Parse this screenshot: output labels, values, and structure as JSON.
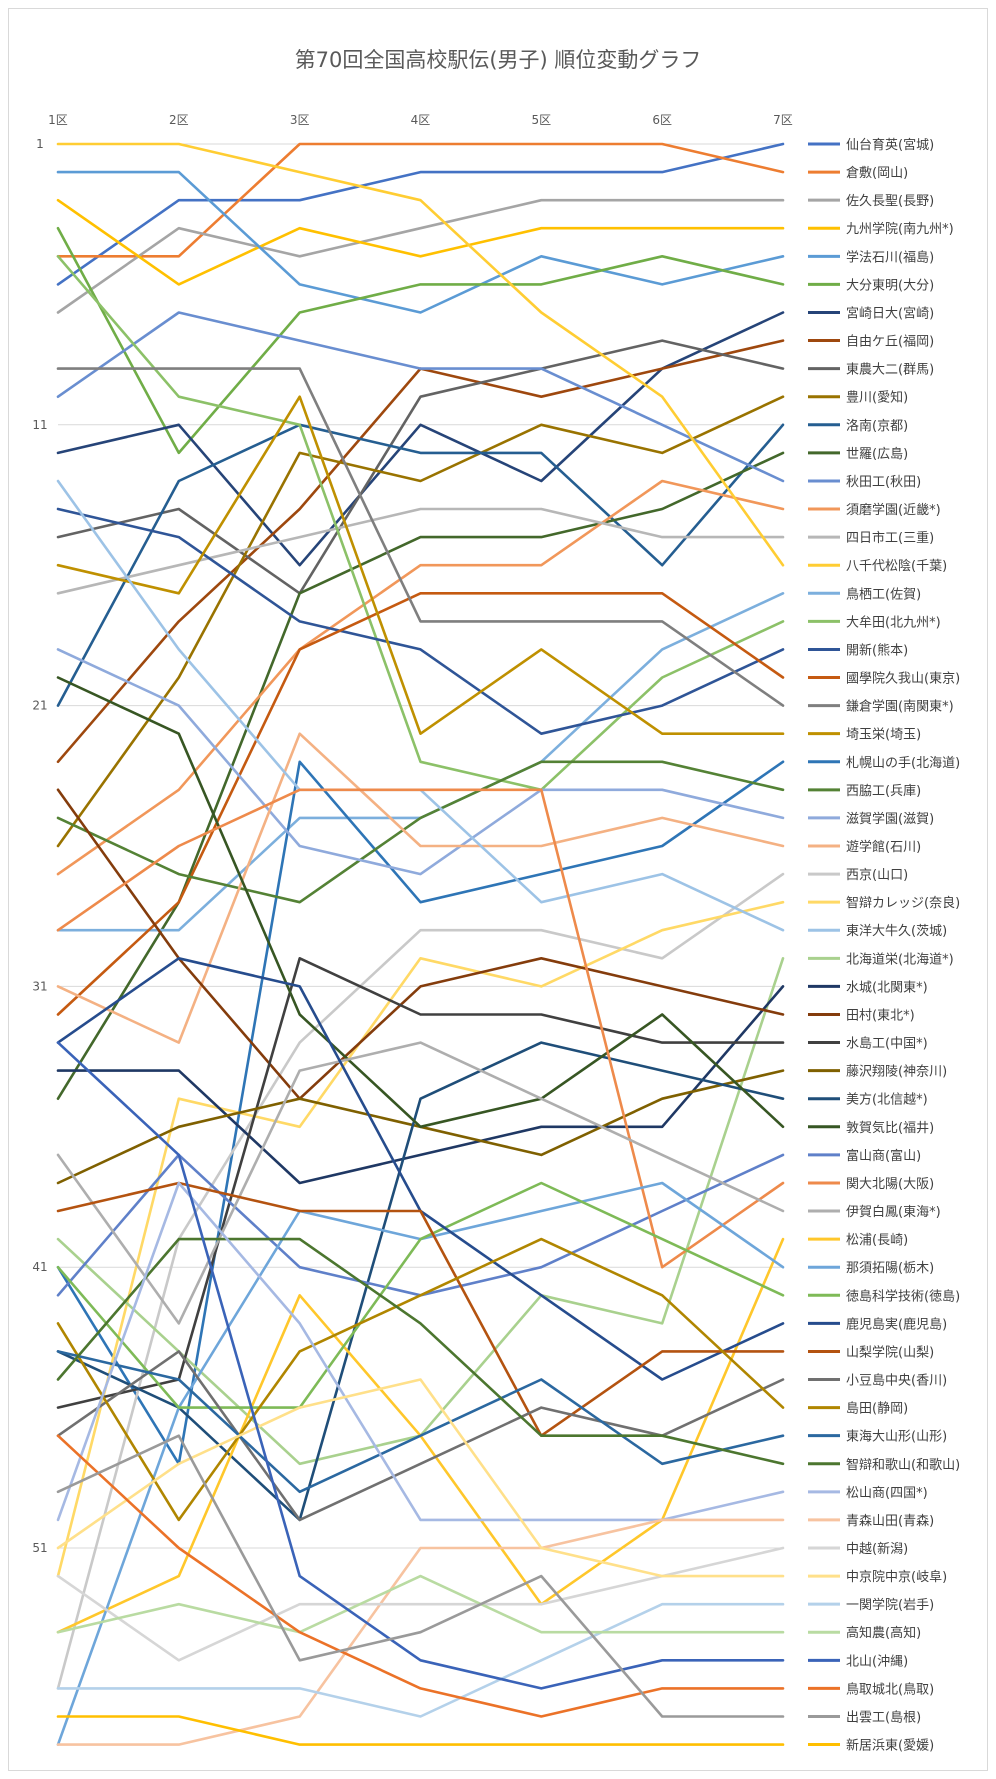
{
  "chart_data": {
    "type": "line",
    "title": "第70回全国高校駅伝(男子) 順位変動グラフ",
    "x": [
      "1区",
      "2区",
      "3区",
      "4区",
      "5区",
      "6区",
      "7区"
    ],
    "y_ticks": [
      "1",
      "11",
      "21",
      "31",
      "41",
      "51"
    ],
    "ylim": [
      1,
      58
    ],
    "y_inverted": true,
    "grid": "horizontal",
    "legend_position": "right",
    "series": [
      {
        "name": "仙台育英(宮城)",
        "color": "#4472c4",
        "values": [
          6,
          3,
          3,
          2,
          2,
          2,
          1
        ]
      },
      {
        "name": "倉敷(岡山)",
        "color": "#ed7d31",
        "values": [
          5,
          5,
          1,
          1,
          1,
          1,
          2
        ]
      },
      {
        "name": "佐久長聖(長野)",
        "color": "#a5a5a5",
        "values": [
          7,
          4,
          5,
          4,
          3,
          3,
          3
        ]
      },
      {
        "name": "九州学院(南九州*)",
        "color": "#ffc000",
        "values": [
          3,
          6,
          4,
          5,
          4,
          4,
          4
        ]
      },
      {
        "name": "学法石川(福島)",
        "color": "#5b9bd5",
        "values": [
          2,
          2,
          6,
          7,
          5,
          6,
          5
        ]
      },
      {
        "name": "大分東明(大分)",
        "color": "#70ad47",
        "values": [
          4,
          12,
          7,
          6,
          6,
          5,
          6
        ]
      },
      {
        "name": "宮崎日大(宮崎)",
        "color": "#264478",
        "values": [
          12,
          11,
          16,
          11,
          13,
          9,
          7
        ]
      },
      {
        "name": "自由ケ丘(福岡)",
        "color": "#9e480e",
        "values": [
          23,
          18,
          14,
          9,
          10,
          9,
          8
        ]
      },
      {
        "name": "東農大二(群馬)",
        "color": "#636363",
        "values": [
          15,
          14,
          17,
          10,
          9,
          8,
          9
        ]
      },
      {
        "name": "豊川(愛知)",
        "color": "#997300",
        "values": [
          26,
          20,
          12,
          13,
          11,
          12,
          10
        ]
      },
      {
        "name": "洛南(京都)",
        "color": "#255e91",
        "values": [
          21,
          13,
          11,
          12,
          12,
          16,
          11
        ]
      },
      {
        "name": "世羅(広島)",
        "color": "#43682b",
        "values": [
          35,
          28,
          17,
          15,
          15,
          14,
          12
        ]
      },
      {
        "name": "秋田工(秋田)",
        "color": "#698ed0",
        "values": [
          10,
          7,
          8,
          9,
          9,
          11,
          13
        ]
      },
      {
        "name": "須磨学園(近畿*)",
        "color": "#f1975a",
        "values": [
          27,
          24,
          19,
          16,
          16,
          13,
          14
        ]
      },
      {
        "name": "四日市工(三重)",
        "color": "#b7b7b7",
        "values": [
          17,
          16,
          15,
          14,
          14,
          15,
          15
        ]
      },
      {
        "name": "八千代松陰(千葉)",
        "color": "#ffcd33",
        "values": [
          1,
          1,
          2,
          3,
          7,
          10,
          16
        ]
      },
      {
        "name": "鳥栖工(佐賀)",
        "color": "#7cafdd",
        "values": [
          29,
          29,
          25,
          25,
          23,
          19,
          17
        ]
      },
      {
        "name": "大牟田(北九州*)",
        "color": "#8cc168",
        "values": [
          5,
          10,
          11,
          23,
          24,
          20,
          18
        ]
      },
      {
        "name": "開新(熊本)",
        "color": "#2f5597",
        "values": [
          14,
          15,
          18,
          19,
          22,
          21,
          19
        ]
      },
      {
        "name": "國學院久我山(東京)",
        "color": "#c55a11",
        "values": [
          32,
          28,
          19,
          17,
          17,
          17,
          20
        ]
      },
      {
        "name": "鎌倉学園(南関東*)",
        "color": "#7f7f7f",
        "values": [
          9,
          9,
          9,
          18,
          18,
          18,
          21
        ]
      },
      {
        "name": "埼玉栄(埼玉)",
        "color": "#bf9000",
        "values": [
          16,
          17,
          10,
          22,
          19,
          22,
          22
        ]
      },
      {
        "name": "札幌山の手(北海道)",
        "color": "#2e75b6",
        "values": [
          41,
          48,
          23,
          28,
          27,
          26,
          23
        ]
      },
      {
        "name": "西脇工(兵庫)",
        "color": "#548235",
        "values": [
          25,
          27,
          28,
          25,
          23,
          23,
          24
        ]
      },
      {
        "name": "滋賀学園(滋賀)",
        "color": "#8faadc",
        "values": [
          19,
          21,
          26,
          27,
          24,
          24,
          25
        ]
      },
      {
        "name": "遊学館(石川)",
        "color": "#f4b183",
        "values": [
          31,
          33,
          22,
          26,
          26,
          25,
          26
        ]
      },
      {
        "name": "西京(山口)",
        "color": "#c9c9c9",
        "values": [
          56,
          40,
          33,
          29,
          29,
          30,
          27
        ]
      },
      {
        "name": "智辯カレッジ(奈良)",
        "color": "#ffd966",
        "values": [
          52,
          35,
          36,
          30,
          31,
          29,
          28
        ]
      },
      {
        "name": "東洋大牛久(茨城)",
        "color": "#9dc3e6",
        "values": [
          13,
          19,
          24,
          24,
          28,
          27,
          29
        ]
      },
      {
        "name": "北海道栄(北海道*)",
        "color": "#a9d18e",
        "values": [
          40,
          44,
          48,
          47,
          42,
          43,
          30
        ]
      },
      {
        "name": "水城(北関東*)",
        "color": "#1f3864",
        "values": [
          34,
          34,
          38,
          37,
          36,
          36,
          31
        ]
      },
      {
        "name": "田村(東北*)",
        "color": "#843c0c",
        "values": [
          24,
          30,
          35,
          31,
          30,
          31,
          32
        ]
      },
      {
        "name": "水島工(中国*)",
        "color": "#404040",
        "values": [
          46,
          45,
          30,
          32,
          32,
          33,
          33
        ]
      },
      {
        "name": "藤沢翔陵(神奈川)",
        "color": "#7f6000",
        "values": [
          38,
          36,
          35,
          36,
          37,
          35,
          34
        ]
      },
      {
        "name": "美方(北信越*)",
        "color": "#1f4e79",
        "values": [
          44,
          46,
          50,
          35,
          33,
          34,
          35
        ]
      },
      {
        "name": "敦賀気比(福井)",
        "color": "#375623",
        "values": [
          20,
          22,
          32,
          36,
          35,
          32,
          36
        ]
      },
      {
        "name": "富山商(富山)",
        "color": "#5f80c9",
        "values": [
          42,
          37,
          41,
          42,
          41,
          39,
          37
        ]
      },
      {
        "name": "関大北陽(大阪)",
        "color": "#ee8a4b",
        "values": [
          29,
          26,
          24,
          24,
          24,
          41,
          38
        ]
      },
      {
        "name": "伊賀白鳳(東海*)",
        "color": "#aeaeae",
        "values": [
          37,
          43,
          34,
          33,
          35,
          37,
          39
        ]
      },
      {
        "name": "松浦(長崎)",
        "color": "#ffc72b",
        "values": [
          54,
          52,
          42,
          47,
          53,
          50,
          40
        ]
      },
      {
        "name": "那須拓陽(栃木)",
        "color": "#6ea6da",
        "values": [
          58,
          46,
          39,
          40,
          39,
          38,
          41
        ]
      },
      {
        "name": "徳島科学技術(徳島)",
        "color": "#7eba57",
        "values": [
          41,
          46,
          46,
          40,
          38,
          40,
          42
        ]
      },
      {
        "name": "鹿児島実(鹿児島)",
        "color": "#264c8d",
        "values": [
          33,
          30,
          31,
          39,
          42,
          45,
          43
        ]
      },
      {
        "name": "山梨学院(山梨)",
        "color": "#b45310",
        "values": [
          39,
          38,
          39,
          39,
          47,
          44,
          44
        ]
      },
      {
        "name": "小豆島中央(香川)",
        "color": "#707070",
        "values": [
          47,
          44,
          50,
          48,
          46,
          47,
          45
        ]
      },
      {
        "name": "島田(静岡)",
        "color": "#b08600",
        "values": [
          43,
          50,
          44,
          42,
          40,
          42,
          46
        ]
      },
      {
        "name": "東海大山形(山形)",
        "color": "#2b68a0",
        "values": [
          44,
          45,
          49,
          47,
          45,
          48,
          47
        ]
      },
      {
        "name": "智辯和歌山(和歌山)",
        "color": "#4c762f",
        "values": [
          45,
          40,
          40,
          43,
          47,
          47,
          48
        ]
      },
      {
        "name": "松山商(四国*)",
        "color": "#a6b9e3",
        "values": [
          50,
          38,
          43,
          50,
          50,
          50,
          49
        ]
      },
      {
        "name": "青森山田(青森)",
        "color": "#f7c3a0",
        "values": [
          58,
          58,
          57,
          51,
          51,
          50,
          50
        ]
      },
      {
        "name": "中越(新潟)",
        "color": "#d6d6d6",
        "values": [
          52,
          55,
          53,
          53,
          53,
          52,
          51
        ]
      },
      {
        "name": "中京院中京(岐阜)",
        "color": "#ffe08a",
        "values": [
          51,
          48,
          46,
          45,
          51,
          52,
          52
        ]
      },
      {
        "name": "一関学院(岩手)",
        "color": "#b4d1ea",
        "values": [
          56,
          56,
          56,
          57,
          55,
          53,
          53
        ]
      },
      {
        "name": "高知農(高知)",
        "color": "#b9dba2",
        "values": [
          54,
          53,
          54,
          52,
          54,
          54,
          54
        ]
      },
      {
        "name": "北山(沖縄)",
        "color": "#3a63b8",
        "values": [
          33,
          37,
          52,
          55,
          56,
          55,
          55
        ]
      },
      {
        "name": "鳥取城北(鳥取)",
        "color": "#eb7228",
        "values": [
          47,
          51,
          54,
          56,
          57,
          56,
          56
        ]
      },
      {
        "name": "出雲工(島根)",
        "color": "#9a9a9a",
        "values": [
          49,
          47,
          55,
          54,
          52,
          57,
          57
        ]
      },
      {
        "name": "新居浜東(愛媛)",
        "color": "#ffbf00",
        "values": [
          57,
          57,
          58,
          58,
          58,
          58,
          58
        ]
      }
    ]
  }
}
